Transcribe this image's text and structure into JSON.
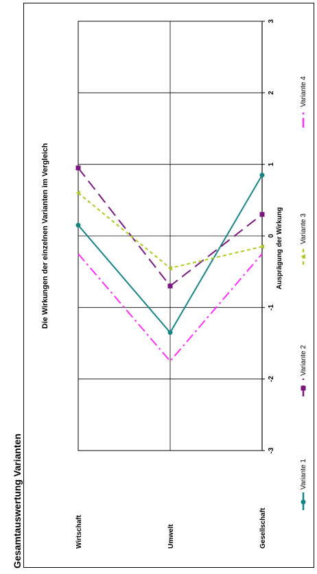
{
  "page_title": "Gesamtauswertung Varianten",
  "chart_data": {
    "type": "line",
    "title": "Die Wirkungen der einzelnen Varianten im Vergleich",
    "xlabel": "Ausprägung der Wirkung",
    "ylabel": "",
    "xlim": [
      -3,
      3
    ],
    "x_ticks": [
      "-3",
      "-2",
      "-1",
      "0",
      "1",
      "2",
      "3"
    ],
    "categories": [
      "Wirtschaft",
      "Umwelt",
      "Gesellschaft"
    ],
    "grid": true,
    "legend_position": "bottom",
    "series": [
      {
        "name": "Variante 1",
        "values": [
          0.15,
          -1.35,
          0.85
        ],
        "color": "#138484",
        "dash": "solid",
        "marker": "circle"
      },
      {
        "name": "Variante 2",
        "values": [
          0.95,
          -0.7,
          0.3
        ],
        "color": "#7b1680",
        "dash": "long-dash",
        "marker": "square"
      },
      {
        "name": "Variante 3",
        "values": [
          0.6,
          -0.45,
          -0.15
        ],
        "color": "#aacd1e",
        "dash": "dotted",
        "marker": "triangle"
      },
      {
        "name": "Variante 4",
        "values": [
          -0.25,
          -1.75,
          -0.25
        ],
        "color": "#ff2bff",
        "dash": "dash-dot",
        "marker": "none"
      }
    ]
  }
}
